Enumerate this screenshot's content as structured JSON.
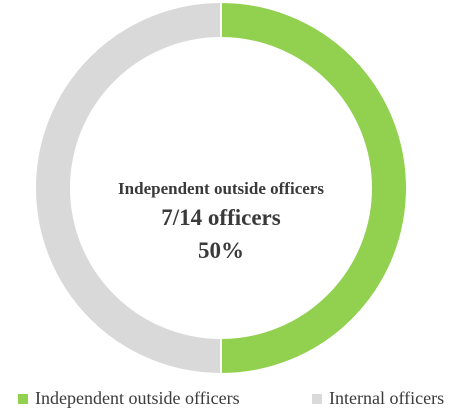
{
  "chart_data": {
    "type": "pie",
    "variant": "donut",
    "center_label": {
      "title": "Independent outside officers",
      "count": "7/14 officers",
      "percent": "50%"
    },
    "slices": [
      {
        "label": "Independent outside officers",
        "value": 7,
        "color": "#92d050"
      },
      {
        "label": "Internal officers",
        "value": 7,
        "color": "#d9d9d9"
      }
    ],
    "start_angle": "12 o'clock",
    "direction": "clockwise",
    "legend_position": "bottom"
  }
}
